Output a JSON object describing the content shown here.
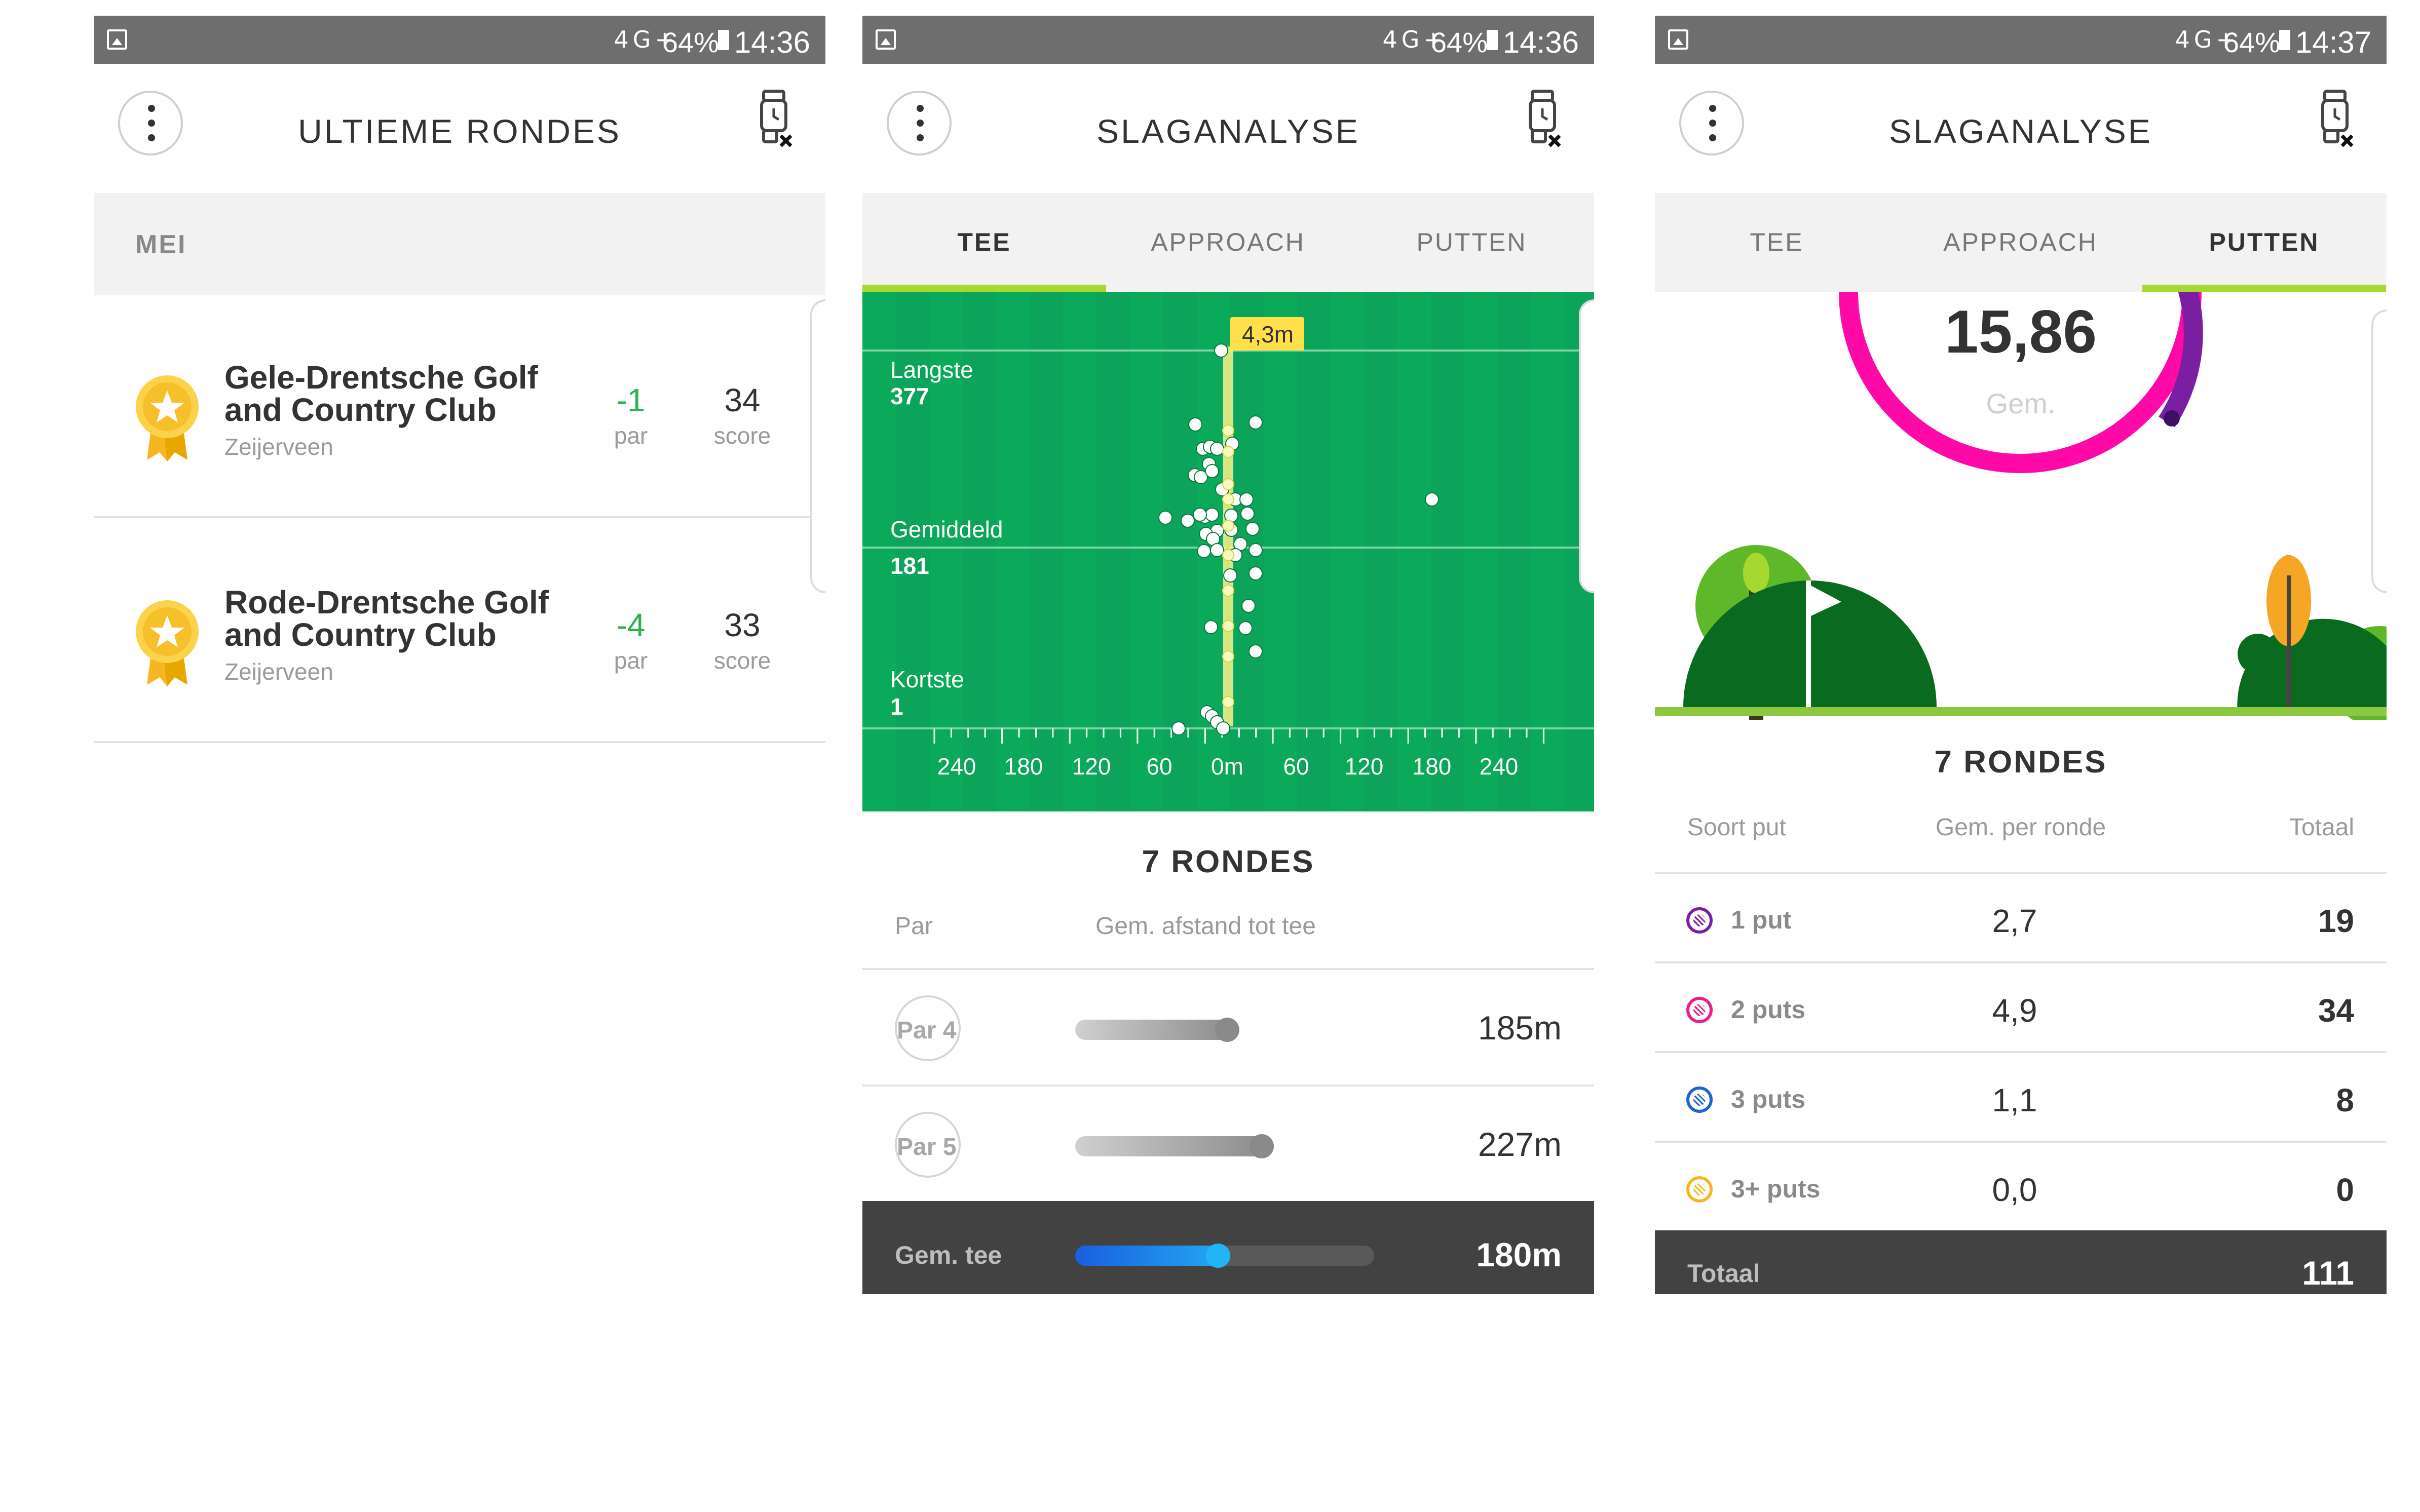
{
  "status_bars": [
    {
      "signal": "4G+",
      "battery": "64%",
      "time": "14:36"
    },
    {
      "signal": "4G+",
      "battery": "64%",
      "time": "14:36"
    },
    {
      "signal": "4G+",
      "battery": "64%",
      "time": "14:37"
    }
  ],
  "screen1": {
    "title": "ULTIEME RONDES",
    "month": "MEI",
    "rounds": [
      {
        "club_line1": "Gele-Drentsche Golf",
        "club_line2": "and Country Club",
        "location": "Zeijerveen",
        "par_value": "-1",
        "par_label": "par",
        "score_value": "34",
        "score_label": "score"
      },
      {
        "club_line1": "Rode-Drentsche Golf",
        "club_line2": "and Country Club",
        "location": "Zeijerveen",
        "par_value": "-4",
        "par_label": "par",
        "score_value": "33",
        "score_label": "score"
      }
    ]
  },
  "screen2": {
    "title": "SLAGANALYSE",
    "tabs": [
      "TEE",
      "APPROACH",
      "PUTTEN"
    ],
    "active_tab": "TEE",
    "chart": {
      "callout": "4,3m",
      "longest_label": "Langste",
      "longest_value": "377",
      "average_label": "Gemiddeld",
      "average_value": "181",
      "shortest_label": "Kortste",
      "shortest_value": "1",
      "x_ticks": [
        "240",
        "180",
        "120",
        "60",
        "0m",
        "60",
        "120",
        "180",
        "240"
      ]
    },
    "rounds_title": "7 RONDES",
    "col_par": "Par",
    "col_avg": "Gem. afstand tot tee",
    "rows": [
      {
        "par": "Par 4",
        "value": "185m"
      },
      {
        "par": "Par 5",
        "value": "227m"
      }
    ],
    "summary_label": "Gem. tee",
    "summary_value": "180m"
  },
  "screen3": {
    "title": "SLAGANALYSE",
    "tabs": [
      "TEE",
      "APPROACH",
      "PUTTEN"
    ],
    "active_tab": "PUTTEN",
    "gauge_value": "15,86",
    "gauge_label": "Gem.",
    "rounds_title": "7 RONDES",
    "col_kind": "Soort put",
    "col_avg": "Gem. per ronde",
    "col_total": "Totaal",
    "rows": [
      {
        "kind": "1 put",
        "avg": "2,7",
        "total": "19",
        "color": "#7b1fa2"
      },
      {
        "kind": "2 puts",
        "avg": "4,9",
        "total": "34",
        "color": "#e91e8c"
      },
      {
        "kind": "3 puts",
        "avg": "1,1",
        "total": "8",
        "color": "#1e64d2"
      },
      {
        "kind": "3+ puts",
        "avg": "0,0",
        "total": "0",
        "color": "#f5b71f"
      }
    ],
    "total_label": "Totaal",
    "total_value": "111"
  },
  "colors": {
    "green_field": "#0aaa5a",
    "accent_tab": "#a6d930",
    "positive_par": "#2bb24c",
    "dark_bar": "#424242",
    "gauge_pink": "#ff0aa8",
    "gauge_purple": "#7b1fa2"
  }
}
